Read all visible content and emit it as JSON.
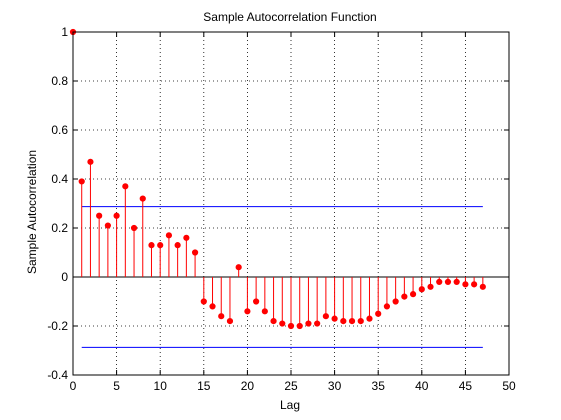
{
  "chart_data": {
    "type": "stem",
    "title": "Sample Autocorrelation Function",
    "xlabel": "Lag",
    "ylabel": "Sample Autocorrelation",
    "xlim": [
      0,
      50
    ],
    "ylim": [
      -0.4,
      1
    ],
    "xticks": [
      0,
      5,
      10,
      15,
      20,
      25,
      30,
      35,
      40,
      45,
      50
    ],
    "yticks": [
      -0.4,
      -0.2,
      0,
      0.2,
      0.4,
      0.6,
      0.8,
      1
    ],
    "grid": true,
    "x": [
      0,
      1,
      2,
      3,
      4,
      5,
      6,
      7,
      8,
      9,
      10,
      11,
      12,
      13,
      14,
      15,
      16,
      17,
      18,
      19,
      20,
      21,
      22,
      23,
      24,
      25,
      26,
      27,
      28,
      29,
      30,
      31,
      32,
      33,
      34,
      35,
      36,
      37,
      38,
      39,
      40,
      41,
      42,
      43,
      44,
      45,
      46,
      47
    ],
    "values": [
      1,
      0.39,
      0.47,
      0.25,
      0.21,
      0.25,
      0.37,
      0.2,
      0.32,
      0.13,
      0.13,
      0.17,
      0.13,
      0.16,
      0.1,
      -0.1,
      -0.12,
      -0.16,
      -0.18,
      0.04,
      -0.14,
      -0.1,
      -0.14,
      -0.18,
      -0.19,
      -0.2,
      -0.2,
      -0.19,
      -0.19,
      -0.16,
      -0.17,
      -0.18,
      -0.18,
      -0.18,
      -0.17,
      -0.15,
      -0.12,
      -0.1,
      -0.08,
      -0.07,
      -0.05,
      -0.04,
      -0.02,
      -0.02,
      -0.02,
      -0.03,
      -0.03,
      -0.04
    ],
    "confidence_bounds": [
      0.287,
      -0.287
    ],
    "stem_color": "#ff0000",
    "bound_color": "#0000ff"
  }
}
